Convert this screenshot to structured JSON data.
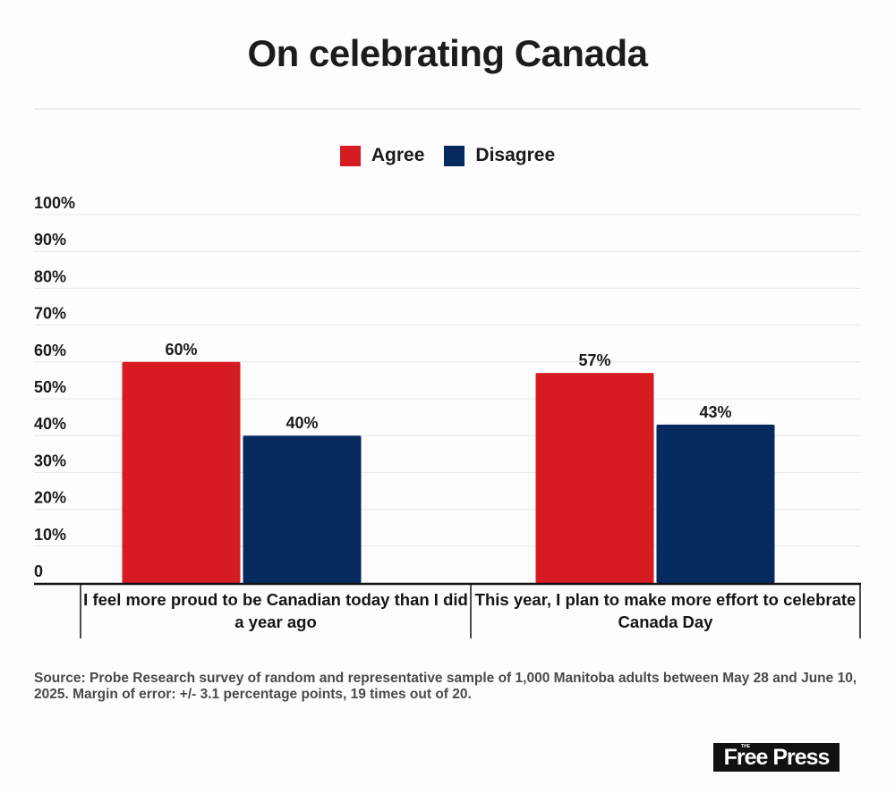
{
  "header": {
    "title": "On celebrating Canada"
  },
  "legend": [
    {
      "label": "Agree",
      "color": "#d71b22"
    },
    {
      "label": "Disagree",
      "color": "#062a5e"
    }
  ],
  "chart_data": {
    "type": "bar",
    "title": "On celebrating Canada",
    "xlabel": "",
    "ylabel": "",
    "ylim": [
      0,
      100
    ],
    "yticks": [
      0,
      10,
      20,
      30,
      40,
      50,
      60,
      70,
      80,
      90,
      100
    ],
    "ytick_labels": [
      "0",
      "10%",
      "20%",
      "30%",
      "40%",
      "50%",
      "60%",
      "70%",
      "80%",
      "90%",
      "100%"
    ],
    "grid": true,
    "legend_position": "top-center",
    "categories": [
      "I feel more proud to be Canadian today than I did a year ago",
      "This year, I plan to make more effort to celebrate Canada Day"
    ],
    "series": [
      {
        "name": "Agree",
        "color": "#d71b22",
        "values": [
          60,
          57
        ],
        "labels": [
          "60%",
          "57%"
        ]
      },
      {
        "name": "Disagree",
        "color": "#062a5e",
        "values": [
          40,
          43
        ],
        "labels": [
          "40%",
          "43%"
        ]
      }
    ]
  },
  "footer": {
    "source": "Source: Probe Research survey of random and representative sample of 1,000 Manitoba adults between May 28 and June 10, 2025. Margin of error: +/- 3.1 percentage points, 19 times out of 20.",
    "logo_small": "THE",
    "logo": "Free Press"
  }
}
